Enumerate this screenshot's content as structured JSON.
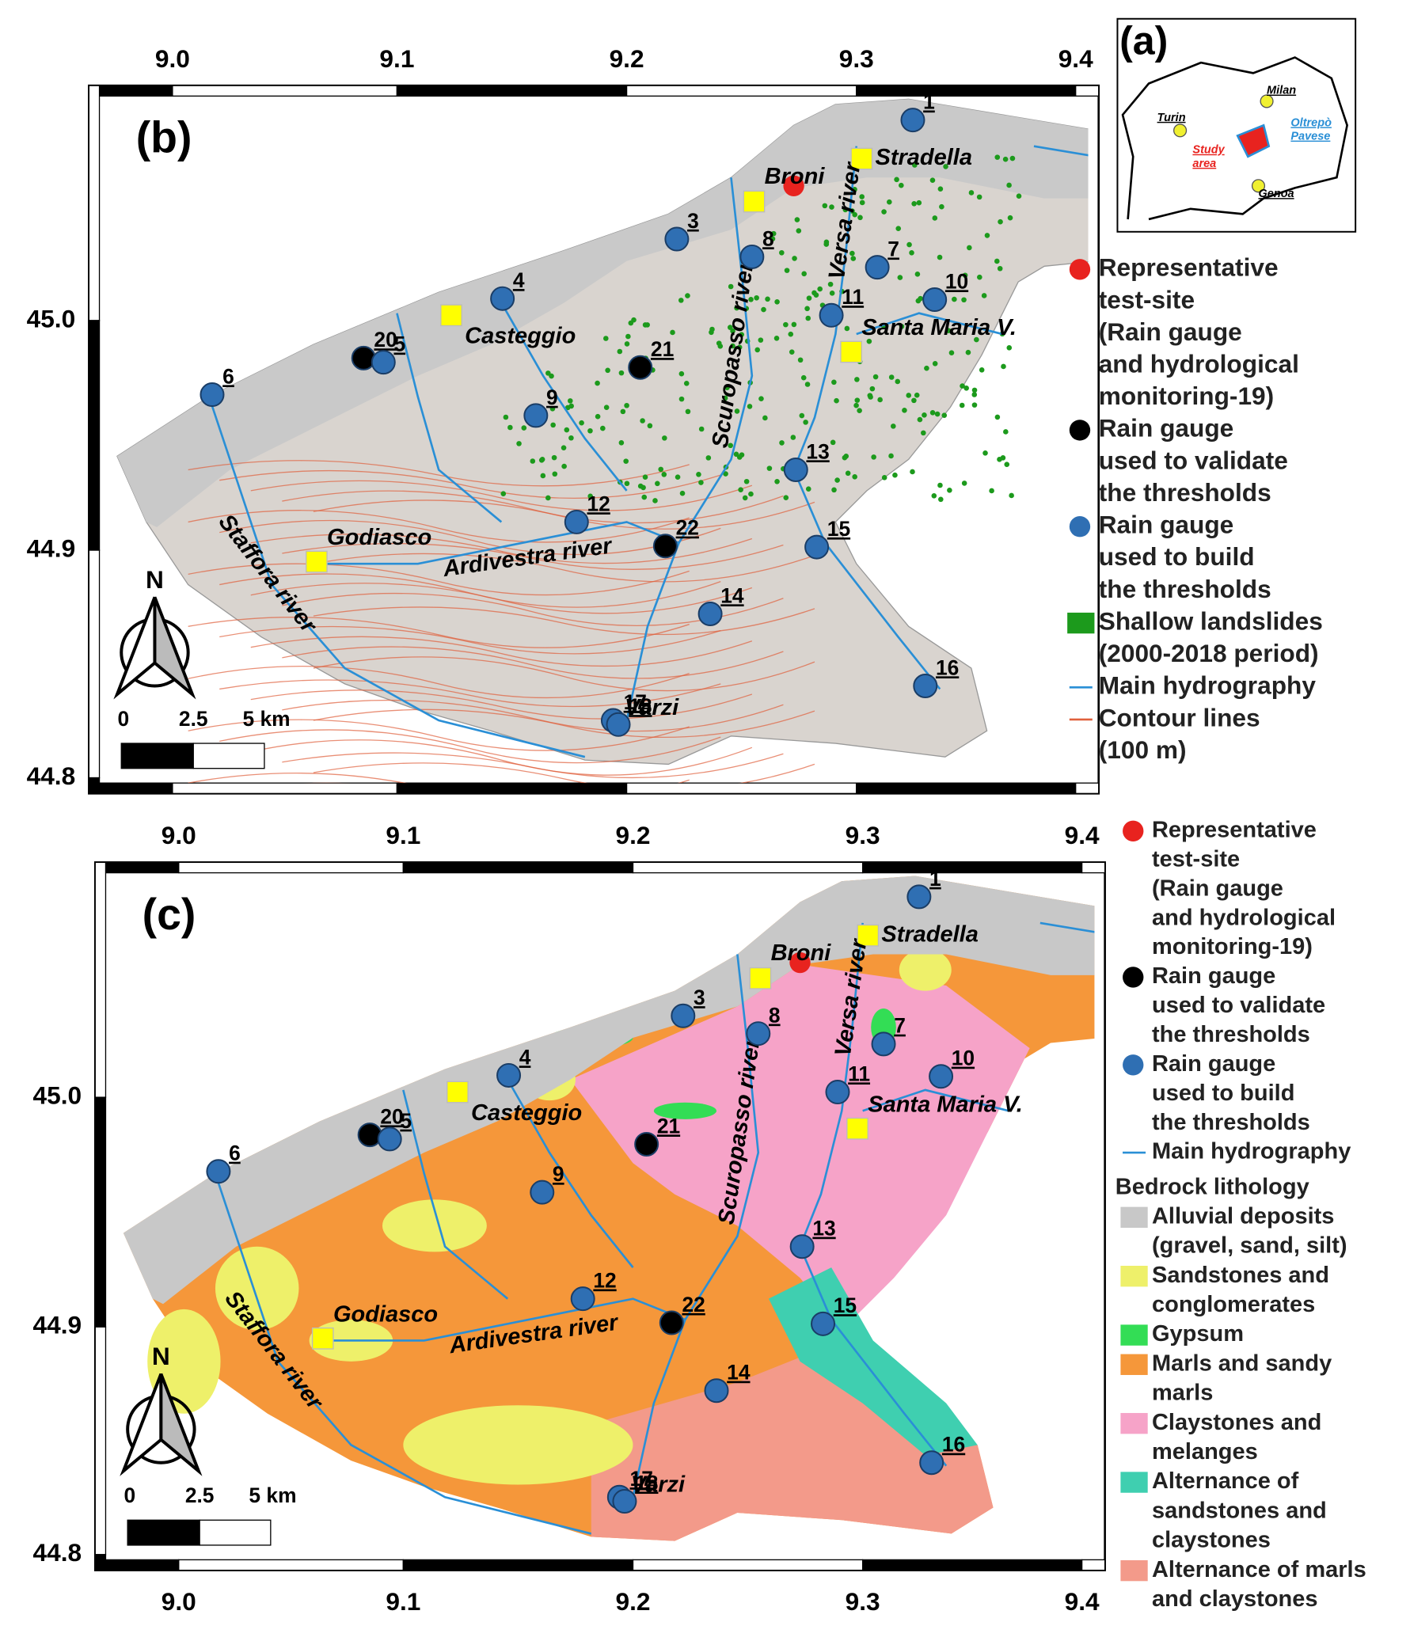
{
  "panel_a": {
    "label": "(a)",
    "places": [
      "Milan",
      "Turin",
      "Genoa"
    ],
    "oltrepo": [
      "Oltrepò",
      "Pavese"
    ],
    "study": [
      "Study",
      "area"
    ]
  },
  "panel_b": {
    "label": "(b)",
    "top_ticks": [
      "9.0",
      "9.1",
      "9.2",
      "9.3",
      "9.4"
    ],
    "left_ticks": [
      "45.0",
      "44.9",
      "44.8"
    ],
    "gauges": [
      {
        "label": "1",
        "color": "#2f6fb3"
      },
      {
        "label": "3",
        "color": "#2f6fb3"
      },
      {
        "label": "8",
        "color": "#2f6fb3"
      },
      {
        "label": "7",
        "color": "#2f6fb3"
      },
      {
        "label": "4",
        "color": "#2f6fb3"
      },
      {
        "label": "10",
        "color": "#2f6fb3"
      },
      {
        "label": "11",
        "color": "#2f6fb3"
      },
      {
        "label": "20",
        "color": "#000000"
      },
      {
        "label": "5",
        "color": "#2f6fb3"
      },
      {
        "label": "21",
        "color": "#000000"
      },
      {
        "label": "6",
        "color": "#2f6fb3"
      },
      {
        "label": "9",
        "color": "#2f6fb3"
      },
      {
        "label": "13",
        "color": "#2f6fb3"
      },
      {
        "label": "12",
        "color": "#2f6fb3"
      },
      {
        "label": "22",
        "color": "#000000"
      },
      {
        "label": "15",
        "color": "#2f6fb3"
      },
      {
        "label": "14",
        "color": "#2f6fb3"
      },
      {
        "label": "16",
        "color": "#2f6fb3"
      },
      {
        "label": "17",
        "color": "#2f6fb3"
      },
      {
        "label": "18",
        "color": "#2f6fb3"
      }
    ],
    "towns": [
      "Stradella",
      "Broni",
      "Casteggio",
      "Santa Maria V.",
      "Godiasco",
      "Varzi"
    ],
    "rivers": [
      "Scuropasso river",
      "Versa river",
      "Staffora river",
      "Ardivestra river"
    ],
    "scale": [
      "0",
      "2.5",
      "5 km"
    ],
    "north": "N",
    "legend": [
      {
        "symbol": "circle",
        "color": "#e8231f",
        "lines": [
          "Representative",
          "test-site",
          "(Rain gauge",
          "and hydrological",
          "monitoring-19)"
        ]
      },
      {
        "symbol": "circle",
        "color": "#000000",
        "lines": [
          "Rain gauge",
          "used to validate",
          "the thresholds"
        ]
      },
      {
        "symbol": "circle",
        "color": "#2f6fb3",
        "lines": [
          "Rain gauge",
          "used to build",
          "the thresholds"
        ]
      },
      {
        "symbol": "rect",
        "color": "#1c9a1c",
        "lines": [
          "Shallow landslides",
          "(2000-2018 period)"
        ]
      },
      {
        "symbol": "line",
        "color": "#2a8fd6",
        "lines": [
          "Main hydrography"
        ]
      },
      {
        "symbol": "line",
        "color": "#e0603c",
        "lines": [
          "Contour lines",
          "(100 m)"
        ]
      }
    ]
  },
  "panel_c": {
    "label": "(c)",
    "top_ticks": [
      "9.0",
      "9.1",
      "9.2",
      "9.3",
      "9.4"
    ],
    "bottom_ticks": [
      "9.0",
      "9.1",
      "9.2",
      "9.3",
      "9.4"
    ],
    "left_ticks": [
      "45.0",
      "44.9",
      "44.8"
    ],
    "gauges": [
      {
        "label": "1",
        "color": "#2f6fb3"
      },
      {
        "label": "3",
        "color": "#2f6fb3"
      },
      {
        "label": "8",
        "color": "#2f6fb3"
      },
      {
        "label": "7",
        "color": "#2f6fb3"
      },
      {
        "label": "4",
        "color": "#2f6fb3"
      },
      {
        "label": "10",
        "color": "#2f6fb3"
      },
      {
        "label": "11",
        "color": "#2f6fb3"
      },
      {
        "label": "20",
        "color": "#000000"
      },
      {
        "label": "5",
        "color": "#2f6fb3"
      },
      {
        "label": "21",
        "color": "#000000"
      },
      {
        "label": "6",
        "color": "#2f6fb3"
      },
      {
        "label": "9",
        "color": "#2f6fb3"
      },
      {
        "label": "13",
        "color": "#2f6fb3"
      },
      {
        "label": "12",
        "color": "#2f6fb3"
      },
      {
        "label": "22",
        "color": "#000000"
      },
      {
        "label": "15",
        "color": "#2f6fb3"
      },
      {
        "label": "14",
        "color": "#2f6fb3"
      },
      {
        "label": "16",
        "color": "#2f6fb3"
      },
      {
        "label": "17",
        "color": "#2f6fb3"
      },
      {
        "label": "18",
        "color": "#2f6fb3"
      }
    ],
    "towns": [
      "Stradella",
      "Broni",
      "Casteggio",
      "Santa Maria V.",
      "Godiasco",
      "Varzi"
    ],
    "rivers": [
      "Scuropasso river",
      "Versa river",
      "Staffora river",
      "Ardivestra river"
    ],
    "scale": [
      "0",
      "2.5",
      "5 km"
    ],
    "north": "N",
    "legend": [
      {
        "symbol": "circle",
        "color": "#e8231f",
        "lines": [
          "Representative",
          "test-site",
          "(Rain gauge",
          "and hydrological",
          "monitoring-19)"
        ]
      },
      {
        "symbol": "circle",
        "color": "#000000",
        "lines": [
          "Rain gauge",
          "used to validate",
          "the thresholds"
        ]
      },
      {
        "symbol": "circle",
        "color": "#2f6fb3",
        "lines": [
          "Rain gauge",
          "used to build",
          "the thresholds"
        ]
      },
      {
        "symbol": "line",
        "color": "#2a8fd6",
        "lines": [
          "Main hydrography"
        ]
      }
    ],
    "lithology_title": "Bedrock lithology",
    "lithology": [
      {
        "color": "#c8c8c8",
        "lines": [
          "Alluvial deposits",
          "(gravel, sand, silt)"
        ]
      },
      {
        "color": "#eef06a",
        "lines": [
          "Sandstones and",
          "conglomerates"
        ]
      },
      {
        "color": "#33dd55",
        "lines": [
          "Gypsum"
        ]
      },
      {
        "color": "#f5973a",
        "lines": [
          "Marls and sandy",
          "marls"
        ]
      },
      {
        "color": "#f6a3c8",
        "lines": [
          "Claystones and",
          "melanges"
        ]
      },
      {
        "color": "#3fcfb0",
        "lines": [
          "Alternance of",
          "sandstones and",
          "claystones"
        ]
      },
      {
        "color": "#f39a8a",
        "lines": [
          "Alternance of marls",
          "and claystones"
        ]
      }
    ]
  }
}
